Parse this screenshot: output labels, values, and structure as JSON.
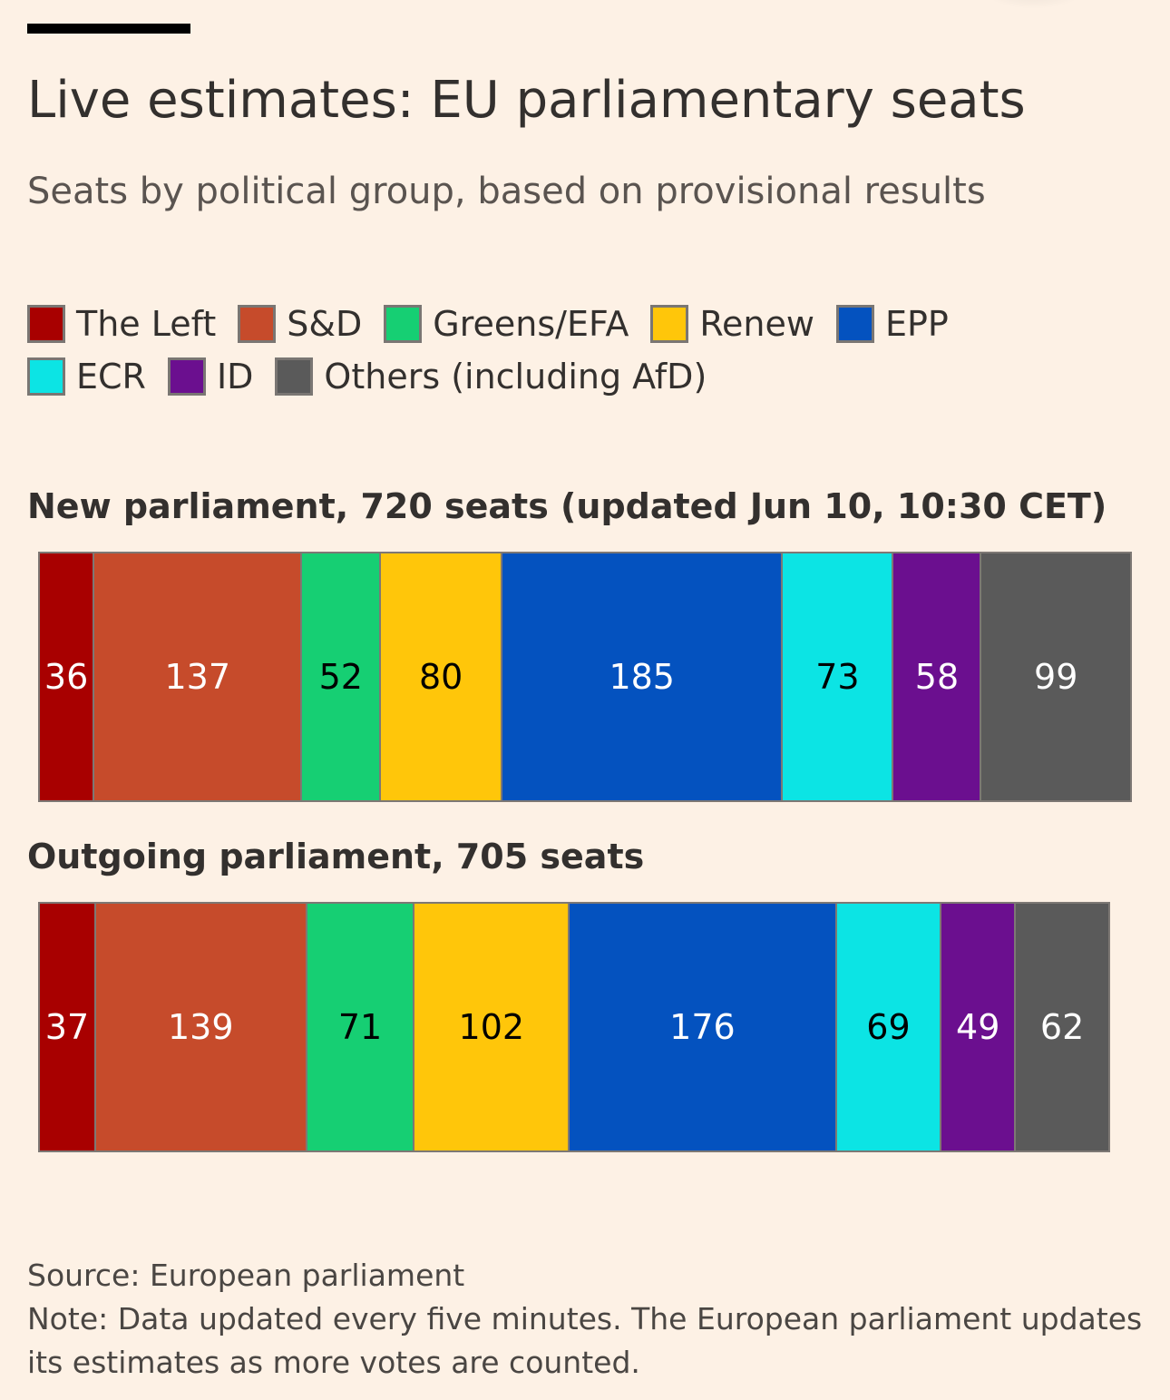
{
  "header": {
    "title": "Live estimates: EU parliamentary seats",
    "subtitle": "Seats by political group, based on provisional results"
  },
  "legend": {
    "rows": [
      [
        {
          "label": "The Left",
          "color": "#a80000"
        },
        {
          "label": "S&D",
          "color": "#c64b2b"
        },
        {
          "label": "Greens/EFA",
          "color": "#16cf73"
        },
        {
          "label": "Renew",
          "color": "#ffc60a"
        },
        {
          "label": "EPP",
          "color": "#0452bf"
        }
      ],
      [
        {
          "label": "ECR",
          "color": "#0ce4e4"
        },
        {
          "label": "ID",
          "color": "#6b0f8f"
        },
        {
          "label": "Others (including AfD)",
          "color": "#5a5a5a"
        }
      ]
    ]
  },
  "chart_data": [
    {
      "type": "bar",
      "title": "New parliament, 720 seats (updated Jun 10, 10:30 CET)",
      "stacked": true,
      "orientation": "horizontal",
      "categories": [
        "The Left",
        "S&D",
        "Greens/EFA",
        "Renew",
        "EPP",
        "ECR",
        "ID",
        "Others (including AfD)"
      ],
      "values": [
        36,
        137,
        52,
        80,
        185,
        73,
        58,
        99
      ],
      "label_colors": [
        "#ffffff",
        "#ffffff",
        "#000000",
        "#000000",
        "#ffffff",
        "#000000",
        "#ffffff",
        "#ffffff"
      ]
    },
    {
      "type": "bar",
      "title": "Outgoing parliament, 705 seats",
      "stacked": true,
      "orientation": "horizontal",
      "categories": [
        "The Left",
        "S&D",
        "Greens/EFA",
        "Renew",
        "EPP",
        "ECR",
        "ID",
        "Others (including AfD)"
      ],
      "values": [
        37,
        139,
        71,
        102,
        176,
        69,
        49,
        62
      ],
      "label_colors": [
        "#ffffff",
        "#ffffff",
        "#000000",
        "#000000",
        "#ffffff",
        "#000000",
        "#ffffff",
        "#ffffff"
      ]
    }
  ],
  "colors": {
    "The Left": "#a80000",
    "S&D": "#c64b2b",
    "Greens/EFA": "#16cf73",
    "Renew": "#ffc60a",
    "EPP": "#0452bf",
    "ECR": "#0ce4e4",
    "ID": "#6b0f8f",
    "Others (including AfD)": "#5a5a5a"
  },
  "footer": {
    "source": "Source: European parliament",
    "note": "Note: Data updated every five minutes. The European parliament updates its estimates as more votes are counted."
  }
}
